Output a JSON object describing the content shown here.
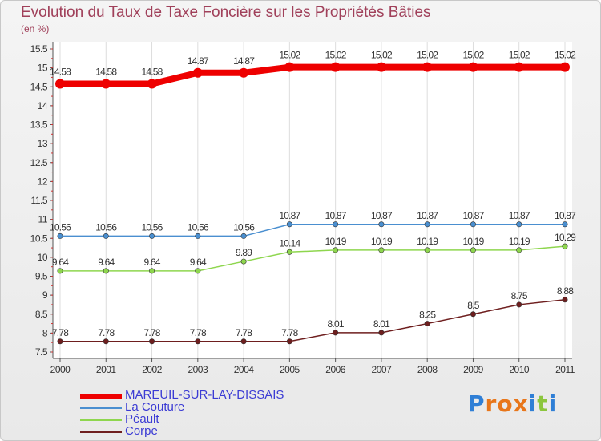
{
  "page": {
    "title": "Evolution du Taux de Taxe Foncière sur les Propriétés Bâties",
    "unit": "(en %)"
  },
  "chart_data": {
    "type": "line",
    "title": "Evolution du Taux de Taxe Foncière sur les Propriétés Bâties",
    "ylabel": "(en %)",
    "xlabel": "",
    "ylim": [
      7.5,
      15.5
    ],
    "yticks": [
      "7.5",
      "8",
      "8.5",
      "9",
      "9.5",
      "10",
      "10.5",
      "11",
      "11.5",
      "12",
      "12.5",
      "13",
      "13.5",
      "14",
      "14.5",
      "15",
      "15.5"
    ],
    "categories": [
      "2000",
      "2001",
      "2002",
      "2003",
      "2004",
      "2005",
      "2006",
      "2007",
      "2008",
      "2009",
      "2010",
      "2011"
    ],
    "grid": "vertical",
    "legend": "bottom-left",
    "series": [
      {
        "name": "MAREUIL-SUR-LAY-DISSAIS",
        "color": "#ee0000",
        "values": [
          14.58,
          14.58,
          14.58,
          14.87,
          14.87,
          15.02,
          15.02,
          15.02,
          15.02,
          15.02,
          15.02,
          15.02
        ],
        "labels": [
          "14.58",
          "14.58",
          "14.58",
          "14.87",
          "14.87",
          "15.02",
          "15.02",
          "15.02",
          "15.02",
          "15.02",
          "15.02",
          "15.02"
        ]
      },
      {
        "name": "La Couture",
        "color": "#4a8fd0",
        "values": [
          10.56,
          10.56,
          10.56,
          10.56,
          10.56,
          10.87,
          10.87,
          10.87,
          10.87,
          10.87,
          10.87,
          10.87
        ],
        "labels": [
          "10.56",
          "10.56",
          "10.56",
          "10.56",
          "10.56",
          "10.87",
          "10.87",
          "10.87",
          "10.87",
          "10.87",
          "10.87",
          "10.87"
        ]
      },
      {
        "name": "Péault",
        "color": "#8ed64e",
        "values": [
          9.64,
          9.64,
          9.64,
          9.64,
          9.89,
          10.14,
          10.19,
          10.19,
          10.19,
          10.19,
          10.19,
          10.29
        ],
        "labels": [
          "9.64",
          "9.64",
          "9.64",
          "9.64",
          "9.89",
          "10.14",
          "10.19",
          "10.19",
          "10.19",
          "10.19",
          "10.19",
          "10.29"
        ]
      },
      {
        "name": "Corpe",
        "color": "#6e1e1e",
        "values": [
          7.78,
          7.78,
          7.78,
          7.78,
          7.78,
          7.78,
          8.01,
          8.01,
          8.25,
          8.5,
          8.75,
          8.88
        ],
        "labels": [
          "7.78",
          "7.78",
          "7.78",
          "7.78",
          "7.78",
          "7.78",
          "8.01",
          "8.01",
          "8.25",
          "8.5",
          "8.75",
          "8.88"
        ]
      }
    ]
  },
  "legend": {
    "items": [
      {
        "label": "MAREUIL-SUR-LAY-DISSAIS",
        "color": "#ee0000",
        "weight": 7
      },
      {
        "label": "La Couture",
        "color": "#4a8fd0",
        "weight": 2
      },
      {
        "label": "Péault",
        "color": "#8ed64e",
        "weight": 2
      },
      {
        "label": "Corpe",
        "color": "#6e1e1e",
        "weight": 2
      }
    ]
  },
  "logo": {
    "text": "Proxiti",
    "letters": [
      "P",
      "r",
      "o",
      "x",
      "i",
      "t",
      "i"
    ],
    "colors": [
      "#2f7fd6",
      "#e8761a",
      "#e8761a",
      "#e8761a",
      "#2f7fd6",
      "#8cc63e",
      "#2f7fd6"
    ]
  }
}
